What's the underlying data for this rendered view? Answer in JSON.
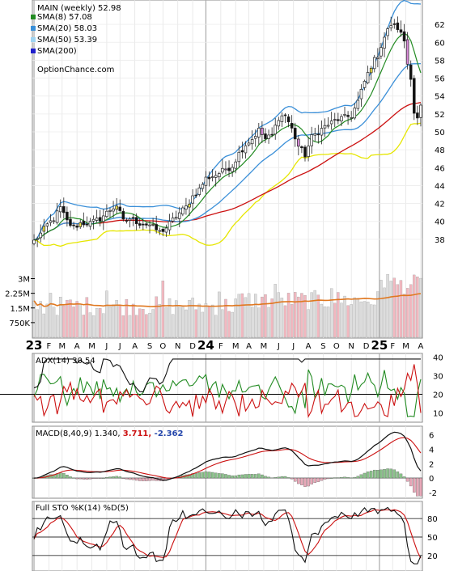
{
  "chart_data": {
    "type": "line",
    "title": "MAIN (weekly) 52.98",
    "source": "OptionChance.com",
    "colors": {
      "sma8": "#228b22",
      "sma20": "#3a8fd8",
      "sma50": "#9fd4f2",
      "sma200": "#1f1fcc",
      "sma200_line": "#cc1111",
      "bollinger_upper": "#3a8fd8",
      "bollinger_lower": "#e6e600",
      "candle_up": "#ffffff",
      "candle_down": "#111111",
      "candle_up_hi": "#f2e44a",
      "candle_down_hi": "#d98ad9",
      "vol_up": "#dddddd",
      "vol_down": "#f2b8c0",
      "vol_avg": "#e07820",
      "adx": "#111111",
      "plus_di": "#228b22",
      "minus_di": "#cc1111",
      "macd": "#111111",
      "signal": "#cc1111",
      "hist_pos": "#8ac28a",
      "hist_neg": "#e8a8b8",
      "stoch_k": "#111111",
      "stoch_d": "#cc1111"
    },
    "legend": [
      {
        "name": "SMA(8)",
        "value": "57.08",
        "color": "#228b22"
      },
      {
        "name": "SMA(20)",
        "value": "58.03",
        "color": "#3a8fd8"
      },
      {
        "name": "SMA(50)",
        "value": "53.39",
        "color": "#9fd4f2"
      },
      {
        "name": "SMA(200)",
        "value": "",
        "color": "#1f1fcc"
      }
    ],
    "x_ticks": [
      {
        "label": "23",
        "bold": true,
        "week": 0
      },
      {
        "label": "F",
        "bold": false,
        "week": 4.5
      },
      {
        "label": "M",
        "bold": false,
        "week": 8.5
      },
      {
        "label": "A",
        "bold": false,
        "week": 13
      },
      {
        "label": "M",
        "bold": false,
        "week": 17.5
      },
      {
        "label": "J",
        "bold": false,
        "week": 22
      },
      {
        "label": "J",
        "bold": false,
        "week": 26
      },
      {
        "label": "A",
        "bold": false,
        "week": 30.5
      },
      {
        "label": "S",
        "bold": false,
        "week": 35
      },
      {
        "label": "O",
        "bold": false,
        "week": 39
      },
      {
        "label": "N",
        "bold": false,
        "week": 43.5
      },
      {
        "label": "D",
        "bold": false,
        "week": 48
      },
      {
        "label": "24",
        "bold": true,
        "week": 52
      },
      {
        "label": "F",
        "bold": false,
        "week": 56.5
      },
      {
        "label": "M",
        "bold": false,
        "week": 61
      },
      {
        "label": "A",
        "bold": false,
        "week": 65
      },
      {
        "label": "M",
        "bold": false,
        "week": 69.5
      },
      {
        "label": "J",
        "bold": false,
        "week": 74
      },
      {
        "label": "J",
        "bold": false,
        "week": 78.5
      },
      {
        "label": "A",
        "bold": false,
        "week": 83
      },
      {
        "label": "S",
        "bold": false,
        "week": 87.5
      },
      {
        "label": "O",
        "bold": false,
        "week": 91.5
      },
      {
        "label": "N",
        "bold": false,
        "week": 96
      },
      {
        "label": "D",
        "bold": false,
        "week": 100.5
      },
      {
        "label": "25",
        "bold": true,
        "week": 104.5
      },
      {
        "label": "F",
        "bold": false,
        "week": 108.5
      },
      {
        "label": "M",
        "bold": false,
        "week": 112.5
      },
      {
        "label": "A",
        "bold": false,
        "week": 117
      }
    ],
    "price_panel": {
      "ylim": [
        36,
        64
      ],
      "yticks": [
        38,
        40,
        42,
        44,
        46,
        48,
        50,
        52,
        54,
        56,
        58,
        60,
        62
      ],
      "anchors": [
        [
          0,
          37.8
        ],
        [
          2,
          38.6
        ],
        [
          4,
          39.6
        ],
        [
          6,
          40.3
        ],
        [
          8,
          41.5
        ],
        [
          10,
          40.0
        ],
        [
          12,
          39.3
        ],
        [
          14,
          39.8
        ],
        [
          17,
          39.8
        ],
        [
          20,
          40.3
        ],
        [
          23,
          41.3
        ],
        [
          25,
          41.8
        ],
        [
          27,
          40.0
        ],
        [
          29,
          40.3
        ],
        [
          32,
          39.8
        ],
        [
          35,
          39.6
        ],
        [
          38,
          38.8
        ],
        [
          40,
          39.3
        ],
        [
          43,
          40.6
        ],
        [
          46,
          41.6
        ],
        [
          48,
          42.8
        ],
        [
          50,
          43.6
        ],
        [
          52,
          44.8
        ],
        [
          55,
          45.2
        ],
        [
          57,
          45.6
        ],
        [
          60,
          46.2
        ],
        [
          62,
          47.6
        ],
        [
          64,
          48.6
        ],
        [
          66,
          49.2
        ],
        [
          68,
          50.2
        ],
        [
          70,
          49.2
        ],
        [
          72,
          49.6
        ],
        [
          74,
          51.6
        ],
        [
          76,
          51.9
        ],
        [
          78,
          50.3
        ],
        [
          80,
          48.4
        ],
        [
          82,
          47.4
        ],
        [
          84,
          49.4
        ],
        [
          86,
          50.0
        ],
        [
          88,
          50.6
        ],
        [
          90,
          51.0
        ],
        [
          92,
          51.4
        ],
        [
          94,
          51.6
        ],
        [
          96,
          51.8
        ],
        [
          98,
          53.4
        ],
        [
          100,
          55.6
        ],
        [
          102,
          57.4
        ],
        [
          104,
          58.6
        ],
        [
          106,
          60.6
        ],
        [
          108,
          62.0
        ],
        [
          110,
          61.6
        ],
        [
          112,
          60.2
        ],
        [
          113,
          57.6
        ],
        [
          114,
          56.2
        ],
        [
          115,
          52.2
        ],
        [
          116,
          51.4
        ],
        [
          117,
          52.98
        ]
      ]
    },
    "volume_panel": {
      "yticks": [
        {
          "label": "3M",
          "value": 3.0
        },
        {
          "label": "2.25M",
          "value": 2.25
        },
        {
          "label": "1.5M",
          "value": 1.5
        },
        {
          "label": "750K",
          "value": 0.75
        }
      ]
    },
    "adx_panel": {
      "title": "ADX(14) 30.54",
      "ylim": [
        5,
        42
      ],
      "yticks": [
        10,
        20,
        30,
        40
      ]
    },
    "macd_panel": {
      "title": "MACD(8,40,9) 1.340,",
      "signal_value": "3.711,",
      "hist_value": "-2.362",
      "ylim": [
        -2.8,
        7.2
      ],
      "yticks": [
        -2,
        0,
        2,
        4,
        6
      ]
    },
    "stoch_panel": {
      "title": "Full STO %K(14) %D(5)",
      "ylim": [
        0,
        100
      ],
      "yticks": [
        20,
        50,
        80
      ],
      "hlines": [
        20,
        50,
        80
      ]
    }
  }
}
